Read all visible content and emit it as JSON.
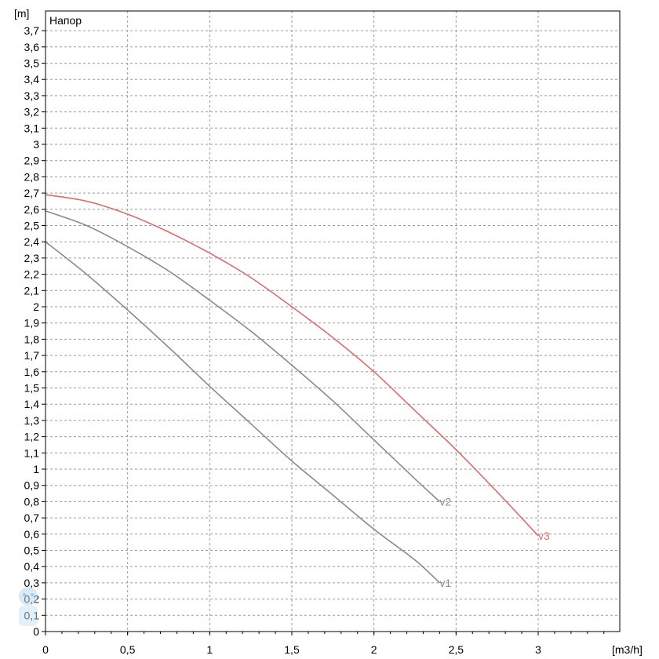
{
  "chart_data": {
    "type": "line",
    "title": "Напор",
    "xlabel": "[m3/h]",
    "ylabel": "[m]",
    "xlim": [
      0,
      3.5
    ],
    "ylim": [
      0,
      3.8
    ],
    "x_ticks": [
      {
        "value": 0,
        "label": "0"
      },
      {
        "value": 0.5,
        "label": "0,5"
      },
      {
        "value": 1,
        "label": "1"
      },
      {
        "value": 1.5,
        "label": "1,5"
      },
      {
        "value": 2,
        "label": "2"
      },
      {
        "value": 2.5,
        "label": "2,5"
      },
      {
        "value": 3,
        "label": "3"
      }
    ],
    "y_ticks": [
      {
        "value": 0,
        "label": "0"
      },
      {
        "value": 0.1,
        "label": "0,1"
      },
      {
        "value": 0.2,
        "label": "0,2"
      },
      {
        "value": 0.3,
        "label": "0,3"
      },
      {
        "value": 0.4,
        "label": "0,4"
      },
      {
        "value": 0.5,
        "label": "0,5"
      },
      {
        "value": 0.6,
        "label": "0,6"
      },
      {
        "value": 0.7,
        "label": "0,7"
      },
      {
        "value": 0.8,
        "label": "0,8"
      },
      {
        "value": 0.9,
        "label": "0,9"
      },
      {
        "value": 1.0,
        "label": "1"
      },
      {
        "value": 1.1,
        "label": "1,1"
      },
      {
        "value": 1.2,
        "label": "1,2"
      },
      {
        "value": 1.3,
        "label": "1,3"
      },
      {
        "value": 1.4,
        "label": "1,4"
      },
      {
        "value": 1.5,
        "label": "1,5"
      },
      {
        "value": 1.6,
        "label": "1,6"
      },
      {
        "value": 1.7,
        "label": "1,7"
      },
      {
        "value": 1.8,
        "label": "1,8"
      },
      {
        "value": 1.9,
        "label": "1,9"
      },
      {
        "value": 2.0,
        "label": "2"
      },
      {
        "value": 2.1,
        "label": "2,1"
      },
      {
        "value": 2.2,
        "label": "2,2"
      },
      {
        "value": 2.3,
        "label": "2,3"
      },
      {
        "value": 2.4,
        "label": "2,4"
      },
      {
        "value": 2.5,
        "label": "2,5"
      },
      {
        "value": 2.6,
        "label": "2,6"
      },
      {
        "value": 2.7,
        "label": "2,7"
      },
      {
        "value": 2.8,
        "label": "2,8"
      },
      {
        "value": 2.9,
        "label": "2,9"
      },
      {
        "value": 3.0,
        "label": "3"
      },
      {
        "value": 3.1,
        "label": "3,1"
      },
      {
        "value": 3.2,
        "label": "3,2"
      },
      {
        "value": 3.3,
        "label": "3,3"
      },
      {
        "value": 3.4,
        "label": "3,4"
      },
      {
        "value": 3.5,
        "label": "3,5"
      },
      {
        "value": 3.6,
        "label": "3,6"
      },
      {
        "value": 3.7,
        "label": "3,7"
      }
    ],
    "grid": true,
    "series": [
      {
        "name": "v1",
        "color": "#8a8a8a",
        "x": [
          0,
          0.25,
          0.5,
          0.75,
          1.0,
          1.25,
          1.5,
          1.75,
          2.0,
          2.25,
          2.4
        ],
        "y": [
          2.4,
          2.2,
          1.98,
          1.75,
          1.51,
          1.28,
          1.05,
          0.84,
          0.63,
          0.44,
          0.3
        ]
      },
      {
        "name": "v2",
        "color": "#8a8a8a",
        "x": [
          0,
          0.25,
          0.5,
          0.75,
          1.0,
          1.25,
          1.5,
          1.75,
          2.0,
          2.25,
          2.4
        ],
        "y": [
          2.59,
          2.5,
          2.37,
          2.22,
          2.04,
          1.85,
          1.64,
          1.42,
          1.18,
          0.94,
          0.8
        ]
      },
      {
        "name": "v3",
        "color": "#e06a6a",
        "x": [
          0,
          0.25,
          0.5,
          0.75,
          1.0,
          1.25,
          1.5,
          1.75,
          2.0,
          2.25,
          2.5,
          2.75,
          3.0
        ],
        "y": [
          2.69,
          2.65,
          2.57,
          2.46,
          2.33,
          2.18,
          2.0,
          1.81,
          1.6,
          1.36,
          1.12,
          0.86,
          0.59
        ]
      }
    ]
  }
}
